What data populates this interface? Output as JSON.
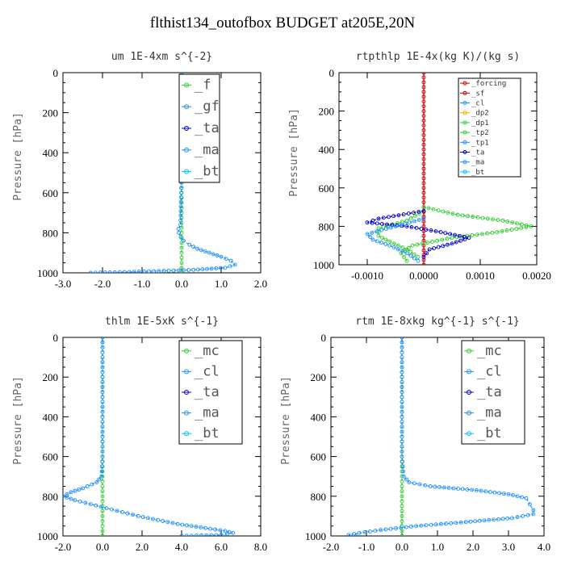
{
  "title": "flthist134_outofbox  BUDGET at205E,20N",
  "chart_data": [
    {
      "type": "line",
      "title": "um  1E-4xm s^{-2}",
      "ylabel": "Pressure [hPa]",
      "xlim": [
        -3.0,
        2.0
      ],
      "ylim": [
        1000,
        0
      ],
      "xticks": [
        "-3.0",
        "-2.0",
        "-1.0",
        "0.0",
        "1.0",
        "2.0"
      ],
      "yticks": [
        "0",
        "200",
        "400",
        "600",
        "800",
        "1000"
      ],
      "legend": [
        "_f",
        "_gf",
        "_ta",
        "_ma",
        "_bt"
      ],
      "series": [
        {
          "name": "_f",
          "color": "#33cc33",
          "p": [
            0,
            200,
            400,
            600,
            750,
            800,
            850,
            900,
            950,
            1000
          ],
          "x": [
            0.0,
            0.0,
            0.0,
            0.0,
            0.0,
            0.0,
            0.0,
            0.0,
            0.0,
            0.0
          ]
        },
        {
          "name": "_ta",
          "color": "#1e90ff",
          "p": [
            0,
            200,
            400,
            600,
            760,
            780,
            800,
            820,
            840,
            860,
            880,
            900,
            920,
            940,
            960,
            975,
            985,
            995,
            1000
          ],
          "x": [
            0.0,
            0.0,
            0.0,
            -0.01,
            -0.03,
            -0.08,
            -0.07,
            -0.02,
            0.05,
            0.2,
            0.4,
            0.7,
            1.0,
            1.25,
            1.35,
            1.1,
            0.3,
            -1.2,
            -2.3
          ]
        }
      ]
    },
    {
      "type": "line",
      "title": "rtpthlp  1E-4x(kg K)/(kg s)",
      "ylabel": "Pressure [hPa]",
      "xlim": [
        -0.0015,
        0.002
      ],
      "ylim": [
        1000,
        0
      ],
      "xticks": [
        "-0.0010",
        "0.0000",
        "0.0010",
        "0.0020"
      ],
      "xtick_values": [
        -0.001,
        0.0,
        0.001,
        0.002
      ],
      "yticks": [
        "0",
        "200",
        "400",
        "600",
        "800",
        "1000"
      ],
      "legend": [
        "_forcing",
        "_sf",
        "_cl",
        "_dp2",
        "_dp1",
        "_tp2",
        "_tp1",
        "_ta",
        "_ma",
        "_bt"
      ],
      "series": [
        {
          "name": "_forcing",
          "color": "#cc0000",
          "p": [
            0,
            200,
            400,
            600,
            800,
            1000
          ],
          "x": [
            0.0,
            0.0,
            0.0,
            0.0,
            0.0,
            0.0
          ]
        },
        {
          "name": "_tp2",
          "color": "#33cc33",
          "p": [
            700,
            740,
            770,
            800,
            830,
            860,
            900,
            940,
            980
          ],
          "x": [
            0.0,
            0.0006,
            0.0014,
            0.0019,
            0.0013,
            0.0005,
            -0.0002,
            -0.0004,
            -0.0003
          ]
        },
        {
          "name": "_dp1",
          "color": "#33cc33",
          "p": [
            720,
            770,
            810,
            850,
            880,
            920,
            960
          ],
          "x": [
            0.0,
            -0.0003,
            -0.0008,
            -0.0008,
            -0.0006,
            -0.0003,
            -0.0001
          ]
        },
        {
          "name": "_ta",
          "color": "#0000cc",
          "p": [
            720,
            760,
            780,
            800,
            830,
            860,
            890,
            920,
            960
          ],
          "x": [
            0.0,
            -0.0008,
            -0.001,
            -0.0003,
            0.0003,
            0.0008,
            0.0005,
            0.0001,
            0.0
          ]
        },
        {
          "name": "_tp1",
          "color": "#1e90ff",
          "p": [
            760,
            800,
            840,
            870,
            900,
            940,
            980
          ],
          "x": [
            0.0,
            -0.0005,
            -0.001,
            -0.0009,
            -0.0006,
            -0.0003,
            -0.0001
          ]
        }
      ]
    },
    {
      "type": "line",
      "title": "thlm  1E-5xK s^{-1}",
      "ylabel": "Pressure [hPa]",
      "xlim": [
        -2.0,
        8.0
      ],
      "ylim": [
        1000,
        0
      ],
      "xticks": [
        "-2.0",
        "0.0",
        "2.0",
        "4.0",
        "6.0",
        "8.0"
      ],
      "yticks": [
        "0",
        "200",
        "400",
        "600",
        "800",
        "1000"
      ],
      "legend": [
        "_mc",
        "_cl",
        "_ta",
        "_ma",
        "_bt"
      ],
      "series": [
        {
          "name": "_mc",
          "color": "#33cc33",
          "p": [
            0,
            200,
            400,
            600,
            800,
            1000
          ],
          "x": [
            0.0,
            0.0,
            0.0,
            0.0,
            0.0,
            0.0
          ]
        },
        {
          "name": "_cl",
          "color": "#1e90ff",
          "p": [
            0,
            200,
            400,
            600,
            700,
            730,
            760,
            780,
            800,
            820,
            840,
            860,
            880,
            900,
            920,
            940,
            960,
            975,
            985,
            995,
            1000
          ],
          "x": [
            0.0,
            0.0,
            0.0,
            0.0,
            -0.05,
            -0.3,
            -1.0,
            -1.6,
            -2.0,
            -1.4,
            -0.6,
            0.2,
            1.0,
            1.8,
            2.8,
            3.8,
            5.2,
            6.2,
            6.6,
            6.0,
            4.0
          ]
        }
      ]
    },
    {
      "type": "line",
      "title": "rtm  1E-8xkg kg^{-1} s^{-1}",
      "ylabel": "Pressure [hPa]",
      "xlim": [
        -2.0,
        4.0
      ],
      "ylim": [
        1000,
        0
      ],
      "xticks": [
        "-2.0",
        "-1.0",
        "0.0",
        "1.0",
        "2.0",
        "3.0",
        "4.0"
      ],
      "yticks": [
        "0",
        "200",
        "400",
        "600",
        "800",
        "1000"
      ],
      "legend": [
        "_mc",
        "_cl",
        "_ta",
        "_ma",
        "_bt"
      ],
      "series": [
        {
          "name": "_mc",
          "color": "#33cc33",
          "p": [
            0,
            200,
            400,
            600,
            800,
            1000
          ],
          "x": [
            0.0,
            0.0,
            0.0,
            0.0,
            0.0,
            0.0
          ]
        },
        {
          "name": "_cl",
          "color": "#1e90ff",
          "p": [
            0,
            200,
            400,
            600,
            700,
            730,
            750,
            770,
            790,
            810,
            840,
            870,
            890,
            910,
            930,
            950,
            970,
            985,
            995,
            1000
          ],
          "x": [
            0.0,
            0.0,
            0.0,
            0.0,
            0.05,
            0.2,
            0.8,
            2.1,
            3.0,
            3.5,
            3.6,
            3.7,
            3.7,
            3.1,
            1.8,
            0.4,
            -0.6,
            -1.2,
            -1.5,
            -1.3
          ]
        }
      ]
    }
  ]
}
